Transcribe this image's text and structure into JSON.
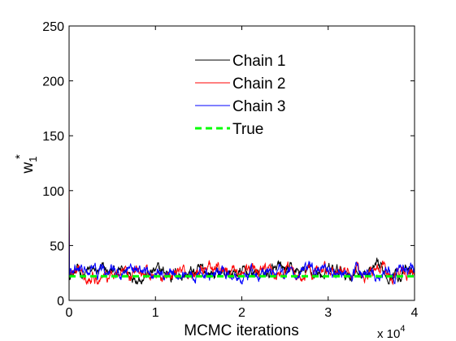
{
  "chart_data": {
    "type": "line",
    "xlabel": "MCMC iterations",
    "ylabel_base": "w",
    "ylabel_sub": "1",
    "ylabel_sup": "*",
    "x_multiplier": {
      "prefix": "x 10",
      "exponent": "4"
    },
    "xlim": [
      0,
      40000
    ],
    "ylim": [
      0,
      250
    ],
    "xticks": [
      0,
      10000,
      20000,
      30000,
      40000
    ],
    "xtick_labels": [
      "0",
      "1",
      "2",
      "3",
      "4"
    ],
    "yticks": [
      0,
      50,
      100,
      150,
      200,
      250
    ],
    "ytick_labels": [
      "0",
      "50",
      "100",
      "150",
      "200",
      "250"
    ],
    "grid": false,
    "legend_position": "top-center",
    "series": [
      {
        "name": "Chain 1",
        "color": "#000000",
        "style": "solid",
        "start_value": 20,
        "mean": 25,
        "spread": 5,
        "min": 15,
        "max": 40
      },
      {
        "name": "Chain 2",
        "color": "#ff0000",
        "style": "solid",
        "start_value": 130,
        "mean": 25,
        "spread": 5,
        "min": 15,
        "max": 45
      },
      {
        "name": "Chain 3",
        "color": "#0000ff",
        "style": "solid",
        "start_value": 85,
        "mean": 25,
        "spread": 5,
        "min": 15,
        "max": 45
      },
      {
        "name": "True",
        "color": "#00ff00",
        "style": "dashed",
        "constant": 22
      }
    ]
  }
}
